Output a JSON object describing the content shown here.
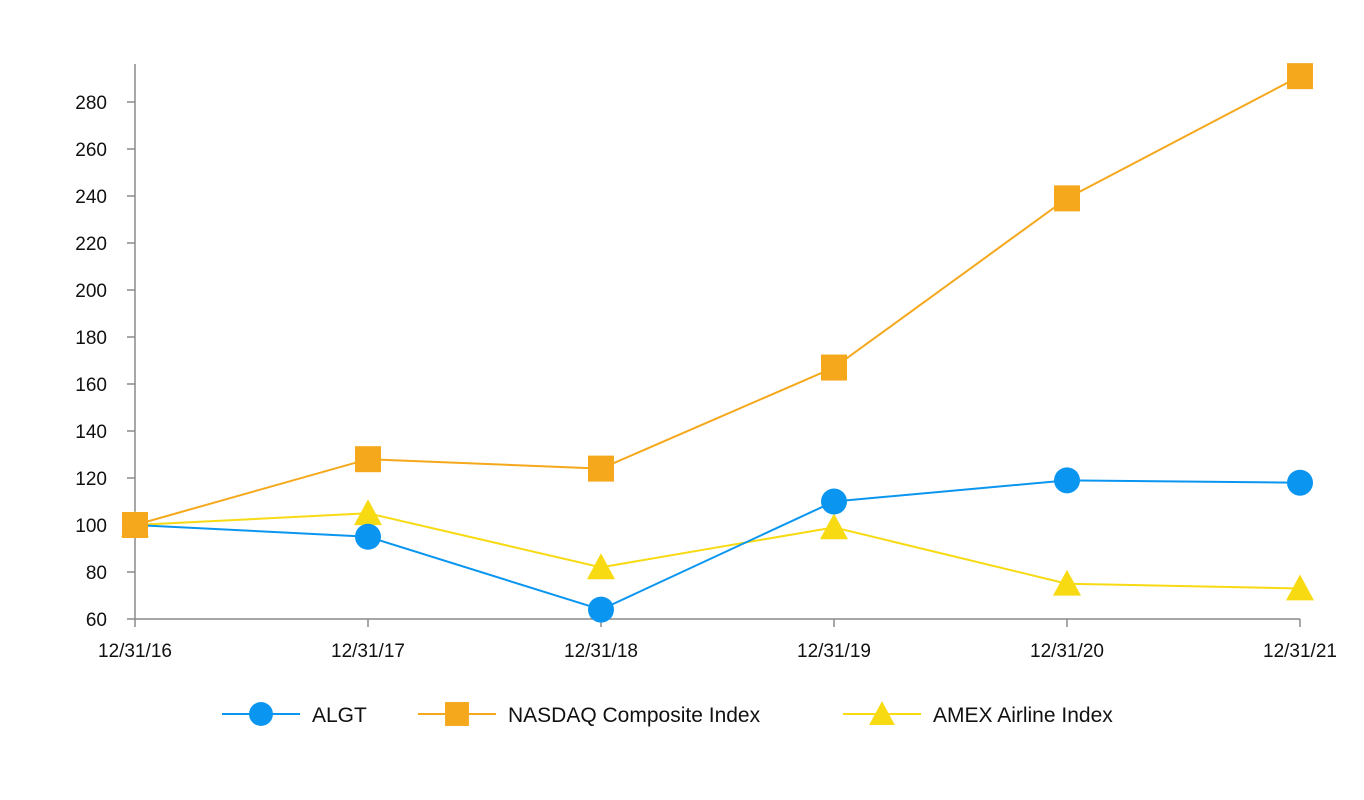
{
  "chart_data": {
    "type": "line",
    "title": "",
    "xlabel": "",
    "ylabel": "",
    "categories": [
      "12/31/16",
      "12/31/17",
      "12/31/18",
      "12/31/19",
      "12/31/20",
      "12/31/21"
    ],
    "ylim": [
      60,
      295
    ],
    "yticks": [
      60,
      80,
      100,
      120,
      140,
      160,
      180,
      200,
      220,
      240,
      260,
      280
    ],
    "grid": false,
    "legend": "bottom",
    "series": [
      {
        "name": "ALGT",
        "marker": "circle",
        "color": "#0A96F0",
        "values": [
          100,
          95,
          64,
          110,
          119,
          118
        ]
      },
      {
        "name": "NASDAQ Composite Index",
        "marker": "square",
        "color": "#F5A81C",
        "values": [
          100,
          128,
          124,
          167,
          239,
          291
        ]
      },
      {
        "name": "AMEX Airline Index",
        "marker": "triangle",
        "color": "#F7DA12",
        "values": [
          100,
          105,
          82,
          99,
          75,
          73
        ]
      }
    ]
  }
}
